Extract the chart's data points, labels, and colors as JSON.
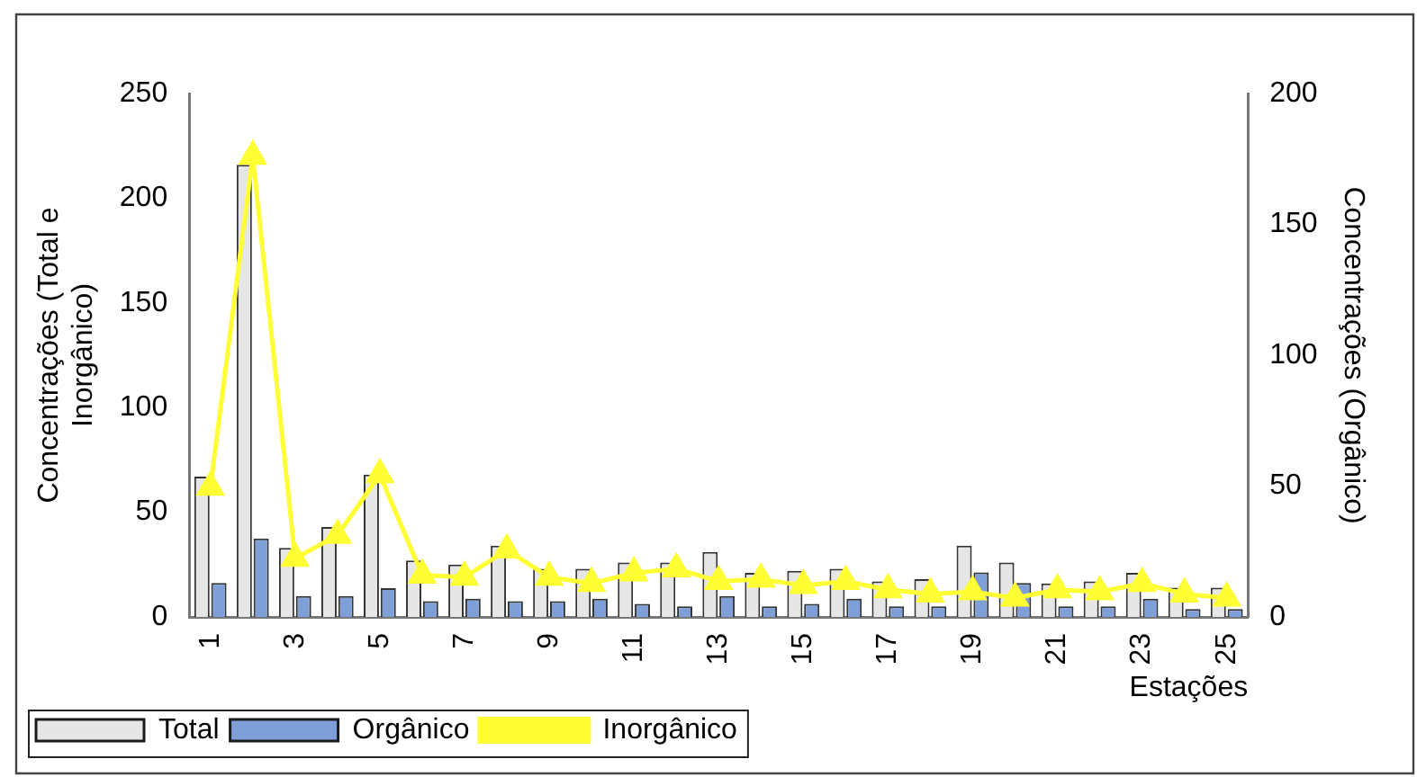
{
  "chart_data": {
    "type": "bar",
    "xlabel": "Estações",
    "ylabel": "Concentrações (Total e Inorgânico)",
    "y2label": "Concentrações (Orgânico)",
    "categories": [
      "1",
      null,
      "3",
      null,
      "5",
      null,
      "7",
      null,
      "9",
      null,
      "11",
      null,
      "13",
      null,
      "15",
      null,
      "17",
      null,
      "19",
      null,
      "21",
      null,
      "23",
      null,
      "25"
    ],
    "series": [
      {
        "name": "Total",
        "color": "#e6e6e6",
        "values": [
          67,
          216,
          33,
          43,
          68,
          27,
          25,
          34,
          23,
          23,
          26,
          26,
          31,
          21,
          22,
          23,
          17,
          18,
          34,
          26,
          16,
          17,
          21,
          14,
          14
        ]
      },
      {
        "name": "Orgânico",
        "axis": "y2",
        "color": "#7f9fd8",
        "values": [
          13,
          30,
          8,
          8,
          11,
          6,
          7,
          6,
          6,
          7,
          5,
          4,
          8,
          4,
          5,
          7,
          4,
          4,
          17,
          13,
          4,
          4,
          7,
          3,
          3
        ]
      },
      {
        "name": "Inorgânico",
        "type": "line",
        "color": "#ffff33",
        "marker": "triangle",
        "values": [
          62,
          220,
          28,
          39,
          68,
          20,
          19,
          32,
          19,
          16,
          21,
          23,
          17,
          18,
          15,
          17,
          13,
          11,
          12,
          9,
          13,
          12,
          16,
          11,
          9
        ]
      }
    ],
    "ylim": [
      0,
      250
    ],
    "yticks": [
      0,
      50,
      100,
      150,
      200,
      250
    ],
    "y2lim": [
      0,
      200
    ],
    "y2ticks": [
      0,
      50,
      100,
      150,
      200
    ],
    "grid": false,
    "legend": "bottom left"
  }
}
